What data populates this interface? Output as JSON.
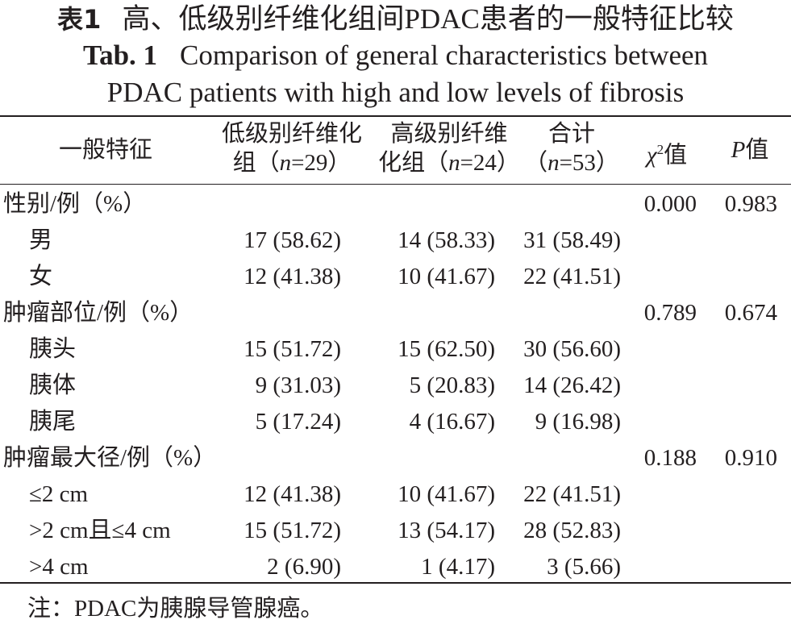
{
  "title": {
    "cn_label": "表1",
    "cn_text": "高、低级别纤维化组间PDAC患者的一般特征比较",
    "en_label": "Tab. 1",
    "en_text_line1": "Comparison of general characteristics between",
    "en_text_line2": "PDAC patients with high and low levels of fibrosis"
  },
  "header": {
    "col0": "一般特征",
    "col1_line1": "低级别纤维化",
    "col1_line2_pre": "组（",
    "col1_line2_n": "n",
    "col1_line2_post": "=29）",
    "col2_line1": "高级别纤维",
    "col2_line2_pre": "化组（",
    "col2_line2_n": "n",
    "col2_line2_post": "=24）",
    "col3_line1": "合计",
    "col3_line2_pre": "（",
    "col3_line2_n": "n",
    "col3_line2_post": "=53）",
    "col4_sym": "χ",
    "col4_sup": "2",
    "col4_text": "值",
    "col5_sym": "P",
    "col5_text": "值"
  },
  "rows": [
    {
      "label": "性别/例（%）",
      "low": "",
      "high": "",
      "total": "",
      "chi2": "0.000",
      "p": "0.983"
    },
    {
      "label": "男",
      "low": "17 (58.62)",
      "high": "14 (58.33)",
      "total": "31 (58.49)",
      "chi2": "",
      "p": ""
    },
    {
      "label": "女",
      "low": "12 (41.38)",
      "high": "10 (41.67)",
      "total": "22 (41.51)",
      "chi2": "",
      "p": ""
    },
    {
      "label": "肿瘤部位/例（%）",
      "low": "",
      "high": "",
      "total": "",
      "chi2": "0.789",
      "p": "0.674"
    },
    {
      "label": "胰头",
      "low": "15 (51.72)",
      "high": "15 (62.50)",
      "total": "30 (56.60)",
      "chi2": "",
      "p": ""
    },
    {
      "label": "胰体",
      "low": "9 (31.03)",
      "high": "5 (20.83)",
      "total": "14 (26.42)",
      "chi2": "",
      "p": ""
    },
    {
      "label": "胰尾",
      "low": "5 (17.24)",
      "high": "4 (16.67)",
      "total": "9 (16.98)",
      "chi2": "",
      "p": ""
    },
    {
      "label": "肿瘤最大径/例（%）",
      "low": "",
      "high": "",
      "total": "",
      "chi2": "0.188",
      "p": "0.910"
    },
    {
      "label": "≤2 cm",
      "low": "12 (41.38)",
      "high": "10 (41.67)",
      "total": "22 (41.51)",
      "chi2": "",
      "p": ""
    },
    {
      "label": ">2 cm且≤4 cm",
      "low": "15 (51.72)",
      "high": "13 (54.17)",
      "total": "28 (52.83)",
      "chi2": "",
      "p": ""
    },
    {
      "label": ">4 cm",
      "low": "2 (6.90)",
      "high": "1 (4.17)",
      "total": "3 (5.66)",
      "chi2": "",
      "p": ""
    }
  ],
  "footnote": "注：PDAC为胰腺导管腺癌。"
}
